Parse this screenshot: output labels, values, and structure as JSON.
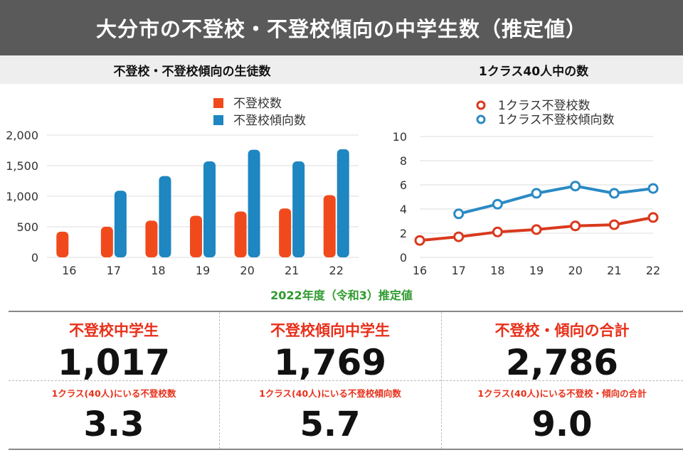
{
  "title": "大分市の不登校・不登校傾向の中学生数（推定値）",
  "charts": {
    "left": {
      "title": "不登校・不登校傾向の生徒数",
      "legend": [
        "不登校数",
        "不登校傾向数"
      ]
    },
    "right": {
      "title": "1クラス40人中の数",
      "legend": [
        "1クラス不登校数",
        "1クラス不登校傾向数"
      ]
    }
  },
  "chart_data": [
    {
      "type": "bar",
      "title": "不登校・不登校傾向の生徒数",
      "categories": [
        "16",
        "17",
        "18",
        "19",
        "20",
        "21",
        "22"
      ],
      "y_ticks": [
        "0",
        "500",
        "1,000",
        "1,500",
        "2,000"
      ],
      "ylim": [
        0,
        2000
      ],
      "series": [
        {
          "name": "不登校数",
          "color": "#f04a1c",
          "values": [
            420,
            500,
            600,
            680,
            750,
            800,
            1017
          ]
        },
        {
          "name": "不登校傾向数",
          "color": "#1e86c0",
          "values": [
            null,
            1090,
            1330,
            1570,
            1760,
            1570,
            1769
          ]
        }
      ]
    },
    {
      "type": "line",
      "title": "1クラス40人中の数",
      "categories": [
        "16",
        "17",
        "18",
        "19",
        "20",
        "21",
        "22"
      ],
      "y_ticks": [
        "0",
        "2",
        "4",
        "6",
        "8",
        "10"
      ],
      "ylim": [
        0,
        10
      ],
      "series": [
        {
          "name": "1クラス不登校数",
          "color": "#d9391e",
          "values": [
            1.4,
            1.7,
            2.1,
            2.3,
            2.6,
            2.7,
            3.3
          ]
        },
        {
          "name": "1クラス不登校傾向数",
          "color": "#2a8ac4",
          "values": [
            null,
            3.6,
            4.4,
            5.3,
            5.9,
            5.3,
            5.7
          ]
        }
      ]
    }
  ],
  "estimate_label": "2022年度（令和3）推定値",
  "summary": [
    {
      "heading": "不登校中学生",
      "value": "1,017",
      "sub_label": "1クラス(40人)にいる不登校数",
      "sub_value": "3.3"
    },
    {
      "heading": "不登校傾向中学生",
      "value": "1,769",
      "sub_label": "1クラス(40人)にいる不登校傾向数",
      "sub_value": "5.7"
    },
    {
      "heading": "不登校・傾向の合計",
      "value": "2,786",
      "sub_label": "1クラス(40人)にいる不登校・傾向の合計",
      "sub_value": "9.0"
    }
  ]
}
